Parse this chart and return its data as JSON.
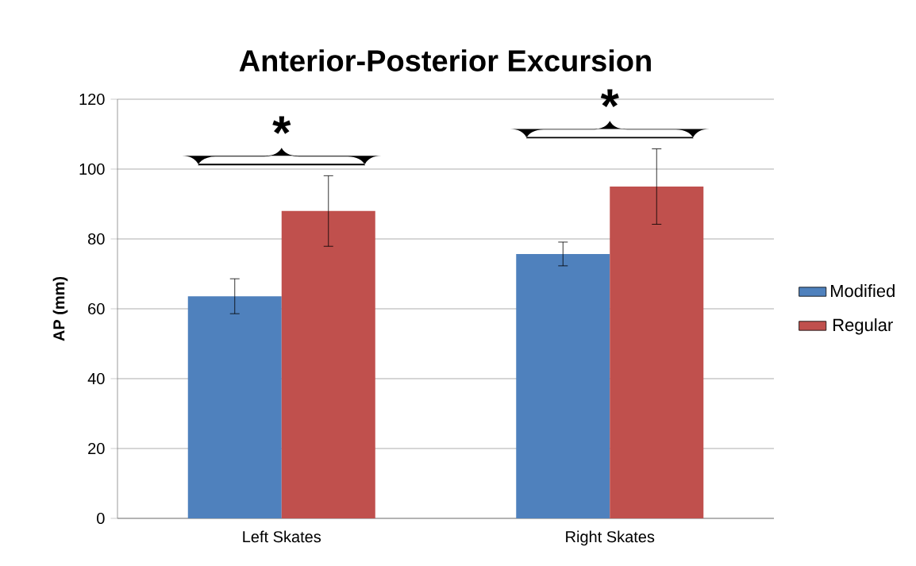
{
  "chart_data": {
    "type": "bar",
    "title": "Anterior-Posterior Excursion",
    "ylabel": "AP (mm)",
    "categories": [
      "Left Skates",
      "Right Skates"
    ],
    "series": [
      {
        "name": "Modified",
        "color": "#4f81bd",
        "values": [
          63.6,
          75.7
        ],
        "errors": [
          5.0,
          3.4
        ]
      },
      {
        "name": "Regular",
        "color": "#c0504d",
        "values": [
          88.0,
          95.0
        ],
        "errors": [
          10.1,
          10.8
        ]
      }
    ],
    "ylim": [
      0,
      120
    ],
    "yticks": [
      0,
      20,
      40,
      60,
      80,
      100,
      120
    ],
    "grid": "y",
    "legend": "right",
    "annotations": [
      "*",
      "*"
    ]
  }
}
